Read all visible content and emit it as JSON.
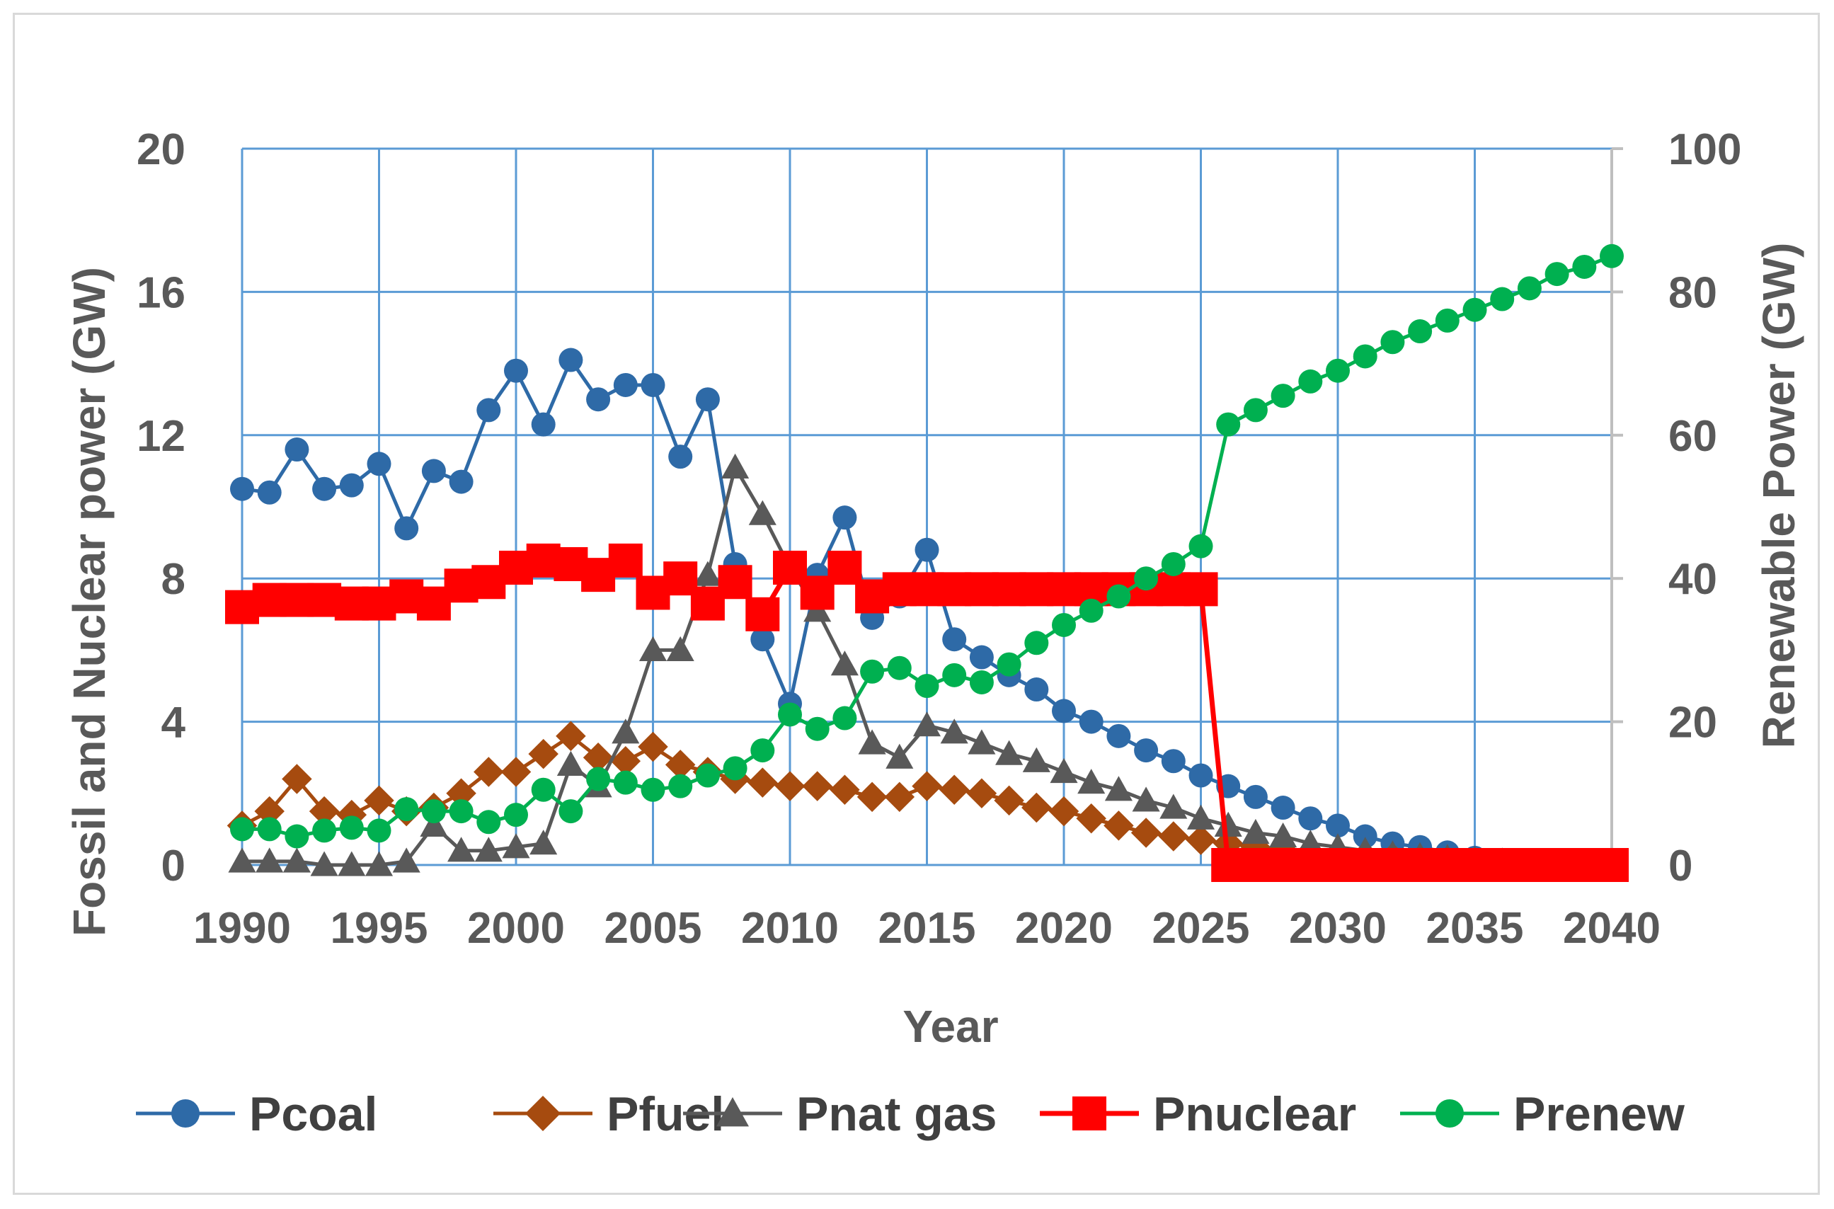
{
  "chart_data": {
    "type": "line",
    "title": "",
    "xlabel": "Year",
    "ylabel_left": "Fossil and Nuclear power (GW)",
    "ylabel_right": "Renewable Power (GW)",
    "xlim": [
      1990,
      2040
    ],
    "ylim_left": [
      0,
      20
    ],
    "ylim_right": [
      0,
      100
    ],
    "x_ticks": [
      1990,
      1995,
      2000,
      2005,
      2010,
      2015,
      2020,
      2025,
      2030,
      2035,
      2040
    ],
    "y_ticks_left": [
      0,
      4,
      8,
      12,
      16,
      20
    ],
    "y_ticks_right": [
      0,
      20,
      40,
      60,
      80,
      100
    ],
    "grid": true,
    "legend_position": "bottom",
    "series": [
      {
        "name": "Pcoal",
        "axis": "left",
        "color": "#2e6aa7",
        "marker": "circle",
        "x": [
          1990,
          1991,
          1992,
          1993,
          1994,
          1995,
          1996,
          1997,
          1998,
          1999,
          2000,
          2001,
          2002,
          2003,
          2004,
          2005,
          2006,
          2007,
          2008,
          2009,
          2010,
          2011,
          2012,
          2013,
          2014,
          2015,
          2016,
          2017,
          2018,
          2019,
          2020,
          2021,
          2022,
          2023,
          2024,
          2025,
          2026,
          2027,
          2028,
          2029,
          2030,
          2031,
          2032,
          2033,
          2034,
          2035,
          2036,
          2037,
          2038,
          2039,
          2040
        ],
        "values": [
          10.5,
          10.4,
          11.6,
          10.5,
          10.6,
          11.2,
          9.4,
          11.0,
          10.7,
          12.7,
          13.8,
          12.3,
          14.1,
          13.0,
          13.4,
          13.4,
          11.4,
          13.0,
          8.4,
          6.3,
          4.5,
          8.1,
          9.7,
          6.9,
          7.5,
          8.8,
          6.3,
          5.8,
          5.3,
          4.9,
          4.3,
          4.0,
          3.6,
          3.2,
          2.9,
          2.5,
          2.2,
          1.9,
          1.6,
          1.3,
          1.1,
          0.8,
          0.6,
          0.5,
          0.35,
          0.2,
          0.1,
          0.05,
          0.0,
          0.0,
          0.0
        ]
      },
      {
        "name": "Pfuel",
        "axis": "left",
        "color": "#a64b0f",
        "marker": "diamond",
        "x": [
          1990,
          1991,
          1992,
          1993,
          1994,
          1995,
          1996,
          1997,
          1998,
          1999,
          2000,
          2001,
          2002,
          2003,
          2004,
          2005,
          2006,
          2007,
          2008,
          2009,
          2010,
          2011,
          2012,
          2013,
          2014,
          2015,
          2016,
          2017,
          2018,
          2019,
          2020,
          2021,
          2022,
          2023,
          2024,
          2025,
          2026,
          2027,
          2028,
          2029,
          2030,
          2031,
          2032,
          2033,
          2034,
          2035,
          2036,
          2037,
          2038,
          2039,
          2040
        ],
        "values": [
          1.1,
          1.5,
          2.4,
          1.5,
          1.4,
          1.8,
          1.5,
          1.6,
          2.0,
          2.6,
          2.6,
          3.1,
          3.6,
          3.0,
          2.9,
          3.3,
          2.8,
          2.6,
          2.4,
          2.3,
          2.2,
          2.2,
          2.1,
          1.9,
          1.9,
          2.2,
          2.1,
          2.0,
          1.8,
          1.6,
          1.5,
          1.3,
          1.1,
          0.9,
          0.8,
          0.7,
          0.6,
          0.5,
          0.4,
          0.35,
          0.3,
          0.25,
          0.2,
          0.15,
          0.1,
          0.08,
          0.06,
          0.04,
          0.02,
          0.01,
          0.0
        ]
      },
      {
        "name": "Pnat gas",
        "axis": "left",
        "color": "#595959",
        "marker": "triangle",
        "x": [
          1990,
          1991,
          1992,
          1993,
          1994,
          1995,
          1996,
          1997,
          1998,
          1999,
          2000,
          2001,
          2002,
          2003,
          2004,
          2005,
          2006,
          2007,
          2008,
          2009,
          2010,
          2011,
          2012,
          2013,
          2014,
          2015,
          2016,
          2017,
          2018,
          2019,
          2020,
          2021,
          2022,
          2023,
          2024,
          2025,
          2026,
          2027,
          2028,
          2029,
          2030,
          2031,
          2032,
          2033,
          2034,
          2035,
          2036,
          2037,
          2038,
          2039,
          2040
        ],
        "values": [
          0.1,
          0.1,
          0.1,
          0.0,
          0.0,
          0.0,
          0.1,
          1.1,
          0.4,
          0.4,
          0.5,
          0.6,
          2.8,
          2.2,
          3.7,
          6.0,
          6.0,
          8.1,
          11.1,
          9.8,
          8.3,
          7.1,
          5.6,
          3.4,
          3.0,
          3.9,
          3.7,
          3.4,
          3.1,
          2.9,
          2.6,
          2.3,
          2.1,
          1.8,
          1.6,
          1.3,
          1.1,
          0.9,
          0.8,
          0.6,
          0.5,
          0.4,
          0.3,
          0.25,
          0.2,
          0.15,
          0.1,
          0.07,
          0.04,
          0.02,
          0.0
        ]
      },
      {
        "name": "Pnuclear",
        "axis": "left",
        "color": "#ff0000",
        "marker": "square",
        "x": [
          1990,
          1991,
          1992,
          1993,
          1994,
          1995,
          1996,
          1997,
          1998,
          1999,
          2000,
          2001,
          2002,
          2003,
          2004,
          2005,
          2006,
          2007,
          2008,
          2009,
          2010,
          2011,
          2012,
          2013,
          2014,
          2015,
          2016,
          2017,
          2018,
          2019,
          2020,
          2021,
          2022,
          2023,
          2024,
          2025,
          2026,
          2027,
          2028,
          2029,
          2030,
          2031,
          2032,
          2033,
          2034,
          2035,
          2036,
          2037,
          2038,
          2039,
          2040
        ],
        "values": [
          7.2,
          7.4,
          7.4,
          7.4,
          7.3,
          7.3,
          7.5,
          7.3,
          7.8,
          7.9,
          8.3,
          8.5,
          8.4,
          8.1,
          8.5,
          7.6,
          8.0,
          7.3,
          7.9,
          7.0,
          8.3,
          7.6,
          8.3,
          7.5,
          7.7,
          7.7,
          7.7,
          7.7,
          7.7,
          7.7,
          7.7,
          7.7,
          7.7,
          7.7,
          7.7,
          7.7,
          0.0,
          0.0,
          0.0,
          0.0,
          0.0,
          0.0,
          0.0,
          0.0,
          0.0,
          0.0,
          0.0,
          0.0,
          0.0,
          0.0,
          0.0
        ]
      },
      {
        "name": "Prenew",
        "axis": "right",
        "color": "#00b050",
        "marker": "circle",
        "x": [
          1990,
          1991,
          1992,
          1993,
          1994,
          1995,
          1996,
          1997,
          1998,
          1999,
          2000,
          2001,
          2002,
          2003,
          2004,
          2005,
          2006,
          2007,
          2008,
          2009,
          2010,
          2011,
          2012,
          2013,
          2014,
          2015,
          2016,
          2017,
          2018,
          2019,
          2020,
          2021,
          2022,
          2023,
          2024,
          2025,
          2026,
          2027,
          2028,
          2029,
          2030,
          2031,
          2032,
          2033,
          2034,
          2035,
          2036,
          2037,
          2038,
          2039,
          2040
        ],
        "values": [
          5.0,
          5.0,
          4.0,
          4.8,
          5.2,
          4.8,
          7.8,
          7.5,
          7.5,
          6.0,
          7.0,
          10.5,
          7.5,
          12.0,
          11.5,
          10.5,
          11.0,
          12.5,
          13.5,
          16.0,
          21.0,
          19.0,
          20.5,
          27.0,
          27.5,
          25.0,
          26.5,
          25.5,
          28.0,
          31.0,
          33.5,
          35.5,
          37.5,
          40.0,
          42.0,
          44.5,
          61.5,
          63.5,
          65.5,
          67.5,
          69.0,
          71.0,
          73.0,
          74.5,
          76.0,
          77.5,
          79.0,
          80.5,
          82.5,
          83.5,
          85.0
        ]
      }
    ]
  }
}
